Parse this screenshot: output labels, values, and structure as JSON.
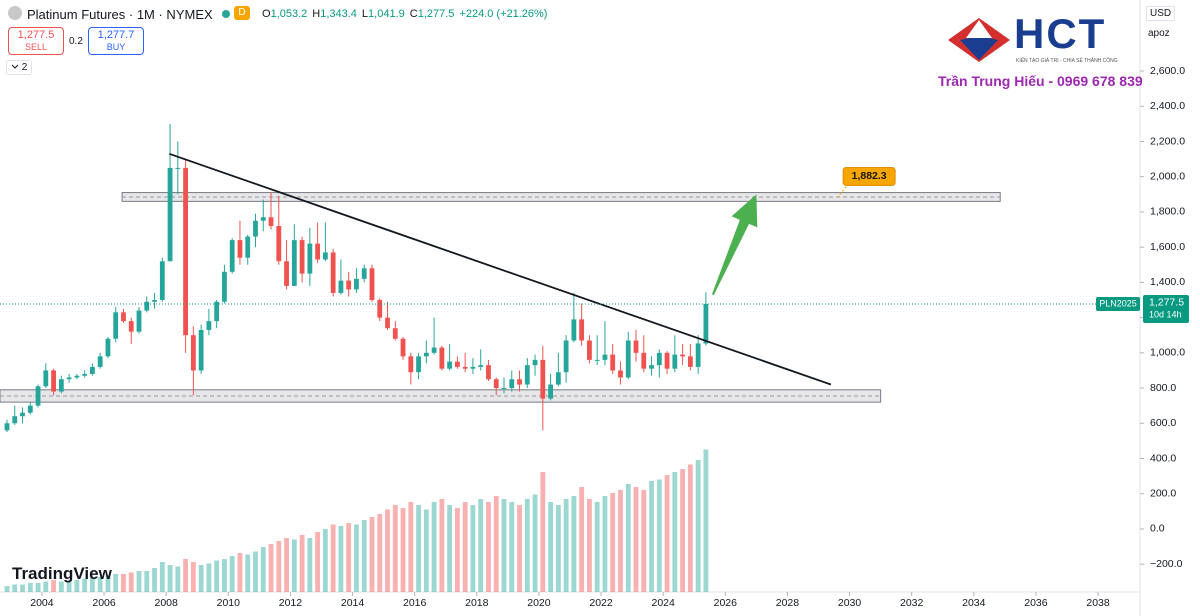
{
  "header": {
    "symbol": "Platinum Futures · 1M · NYMEX",
    "badge": "D",
    "ohlc": [
      {
        "k": "O",
        "v": "1,053.2"
      },
      {
        "k": "H",
        "v": "1,343.4"
      },
      {
        "k": "L",
        "v": "1,041.9"
      },
      {
        "k": "C",
        "v": "1,277.5"
      }
    ],
    "change": "+224.0 (+21.26%)",
    "sell": {
      "price": "1,277.5",
      "label": "SELL"
    },
    "spread": "0.2",
    "buy": {
      "price": "1,277.7",
      "label": "BUY"
    },
    "indicators": "2",
    "currency": "USD",
    "scale_menu": "apoz"
  },
  "branding": {
    "logo": "HCT",
    "tagline": "KIẾN TẠO GIÁ TRỊ - CHIA SẺ THÀNH CÔNG",
    "author": "Trần Trung Hiếu - 0969 678 839",
    "platform": "TradingView"
  },
  "chart_data": {
    "type": "candlestick",
    "up_color": "#26a69a",
    "down_color": "#ef5350",
    "xlim": [
      2002.65,
      2039.35
    ],
    "xticks": [
      2004,
      2006,
      2008,
      2010,
      2012,
      2014,
      2016,
      2018,
      2020,
      2022,
      2024,
      2026,
      2028,
      2030,
      2032,
      2034,
      2036,
      2038
    ],
    "ylim": [
      -358,
      2833
    ],
    "yticks": [
      {
        "value": -200,
        "label": "−200.0"
      },
      {
        "value": 0,
        "label": "0.0"
      },
      {
        "value": 200,
        "label": "200.0"
      },
      {
        "value": 400,
        "label": "400.0"
      },
      {
        "value": 600,
        "label": "600.0"
      },
      {
        "value": 800,
        "label": "800.0"
      },
      {
        "value": 1000,
        "label": "1,000.0"
      },
      {
        "value": 1200,
        "label": "1,200.0"
      },
      {
        "value": 1400,
        "label": "1,400.0"
      },
      {
        "value": 1600,
        "label": "1,600.0"
      },
      {
        "value": 1800,
        "label": "1,800.0"
      },
      {
        "value": 2000,
        "label": "2,000.0"
      },
      {
        "value": 2200,
        "label": "2,200.0"
      },
      {
        "value": 2400,
        "label": "2,400.0"
      },
      {
        "value": 2600,
        "label": "2,600.0"
      }
    ],
    "y2lim": [
      0,
      100
    ],
    "x": [
      2002.75,
      2003,
      2003.25,
      2003.5,
      2003.75,
      2004,
      2004.25,
      2004.5,
      2004.75,
      2005,
      2005.25,
      2005.5,
      2005.75,
      2006,
      2006.25,
      2006.5,
      2006.75,
      2007,
      2007.25,
      2007.5,
      2007.75,
      2008,
      2008.25,
      2008.5,
      2008.75,
      2009,
      2009.25,
      2009.5,
      2009.75,
      2010,
      2010.25,
      2010.5,
      2010.75,
      2011,
      2011.25,
      2011.5,
      2011.75,
      2012,
      2012.25,
      2012.5,
      2012.75,
      2013,
      2013.25,
      2013.5,
      2013.75,
      2014,
      2014.25,
      2014.5,
      2014.75,
      2015,
      2015.25,
      2015.5,
      2015.75,
      2016,
      2016.25,
      2016.5,
      2016.75,
      2017,
      2017.25,
      2017.5,
      2017.75,
      2018,
      2018.25,
      2018.5,
      2018.75,
      2019,
      2019.25,
      2019.5,
      2019.75,
      2020,
      2020.25,
      2020.5,
      2020.75,
      2021,
      2021.25,
      2021.5,
      2021.75,
      2022,
      2022.25,
      2022.5,
      2022.75,
      2023,
      2023.25,
      2023.5,
      2023.75,
      2024,
      2024.25,
      2024.5,
      2024.75,
      2025,
      2025.25
    ],
    "open": [
      560,
      600,
      640,
      660,
      700,
      810,
      900,
      780,
      850,
      860,
      870,
      880,
      920,
      980,
      1080,
      1230,
      1180,
      1120,
      1240,
      1290,
      1300,
      1520,
      2050,
      2050,
      1100,
      900,
      1130,
      1180,
      1290,
      1460,
      1640,
      1540,
      1660,
      1750,
      1770,
      1720,
      1520,
      1380,
      1640,
      1450,
      1620,
      1530,
      1570,
      1340,
      1410,
      1360,
      1420,
      1480,
      1300,
      1200,
      1140,
      1080,
      980,
      890,
      980,
      1000,
      1030,
      910,
      950,
      920,
      910,
      920,
      930,
      850,
      800,
      800,
      850,
      820,
      930,
      960,
      740,
      820,
      890,
      1070,
      1190,
      1070,
      960,
      960,
      990,
      900,
      860,
      1070,
      1000,
      910,
      930,
      1000,
      910,
      990,
      980,
      920,
      1053.2
    ],
    "high": [
      620,
      700,
      690,
      720,
      820,
      940,
      910,
      870,
      880,
      880,
      900,
      940,
      1000,
      1090,
      1260,
      1250,
      1200,
      1260,
      1320,
      1340,
      1540,
      2300,
      2200,
      2100,
      1150,
      1160,
      1250,
      1300,
      1500,
      1650,
      1750,
      1670,
      1790,
      1870,
      1910,
      1890,
      1640,
      1730,
      1660,
      1710,
      1740,
      1740,
      1590,
      1530,
      1460,
      1480,
      1500,
      1500,
      1310,
      1290,
      1180,
      1090,
      1000,
      1000,
      1070,
      1200,
      1040,
      1050,
      980,
      1000,
      970,
      1020,
      960,
      860,
      860,
      900,
      900,
      970,
      990,
      1040,
      880,
      1000,
      1100,
      1340,
      1280,
      1100,
      1100,
      1180,
      1050,
      950,
      1120,
      1130,
      1100,
      980,
      1020,
      1010,
      1100,
      1050,
      1050,
      1100,
      1343.4
    ],
    "low": [
      550,
      590,
      600,
      650,
      690,
      800,
      760,
      770,
      830,
      850,
      860,
      870,
      910,
      970,
      1060,
      1170,
      1050,
      1110,
      1230,
      1250,
      1290,
      1520,
      1900,
      1000,
      760,
      880,
      1100,
      1140,
      1280,
      1450,
      1500,
      1500,
      1600,
      1690,
      1700,
      1500,
      1360,
      1380,
      1400,
      1380,
      1510,
      1520,
      1320,
      1330,
      1320,
      1340,
      1400,
      1290,
      1180,
      1130,
      1070,
      960,
      820,
      850,
      940,
      990,
      900,
      900,
      910,
      890,
      880,
      900,
      840,
      760,
      770,
      780,
      780,
      800,
      870,
      560,
      730,
      810,
      830,
      1060,
      1040,
      940,
      930,
      930,
      880,
      820,
      850,
      950,
      890,
      870,
      860,
      880,
      890,
      930,
      900,
      880,
      1041.9
    ],
    "close": [
      600,
      640,
      660,
      700,
      810,
      900,
      780,
      850,
      860,
      870,
      880,
      920,
      980,
      1080,
      1230,
      1180,
      1120,
      1240,
      1290,
      1300,
      1520,
      2050,
      2050,
      1100,
      900,
      1130,
      1180,
      1290,
      1460,
      1640,
      1540,
      1660,
      1750,
      1770,
      1720,
      1520,
      1380,
      1640,
      1450,
      1620,
      1530,
      1570,
      1340,
      1410,
      1360,
      1420,
      1480,
      1300,
      1200,
      1140,
      1080,
      980,
      890,
      980,
      1000,
      1030,
      910,
      950,
      920,
      910,
      920,
      930,
      850,
      800,
      800,
      850,
      820,
      930,
      960,
      740,
      820,
      890,
      1070,
      1190,
      1070,
      960,
      960,
      990,
      900,
      860,
      1070,
      1000,
      910,
      930,
      1000,
      910,
      990,
      980,
      920,
      1053.2,
      1277.5
    ],
    "volume": [
      4,
      5,
      5,
      6,
      6,
      7,
      8,
      7,
      8,
      8,
      9,
      10,
      10,
      11,
      12,
      12,
      13,
      14,
      14,
      16,
      20,
      18,
      17,
      22,
      20,
      18,
      19,
      21,
      22,
      24,
      26,
      25,
      27,
      30,
      32,
      34,
      36,
      35,
      38,
      36,
      40,
      42,
      45,
      44,
      46,
      45,
      48,
      50,
      52,
      55,
      58,
      56,
      60,
      58,
      55,
      60,
      62,
      58,
      56,
      60,
      58,
      62,
      60,
      64,
      62,
      60,
      58,
      62,
      65,
      80,
      60,
      58,
      62,
      64,
      70,
      62,
      60,
      64,
      66,
      68,
      72,
      70,
      68,
      74,
      75,
      78,
      80,
      82,
      85,
      88,
      95
    ],
    "zones": [
      {
        "low": 1860,
        "high": 1910,
        "x0": 2006.58,
        "x1": 2034.85
      },
      {
        "low": 720,
        "high": 790,
        "x0": 2002.65,
        "x1": 2031.0
      }
    ],
    "trendline": {
      "x": [
        2008.1,
        2029.4
      ],
      "y": [
        2130,
        820
      ]
    },
    "arrow": {
      "x": [
        2025.6,
        2027.0
      ],
      "y": [
        1330,
        1900
      ]
    },
    "target": {
      "value": 1882.3,
      "label": "1,882.3",
      "x": 2029.6
    },
    "last_price": {
      "value": 1277.5,
      "label": "1,277.5",
      "symbol": "PLN2025",
      "countdown": "10d 14h"
    }
  }
}
